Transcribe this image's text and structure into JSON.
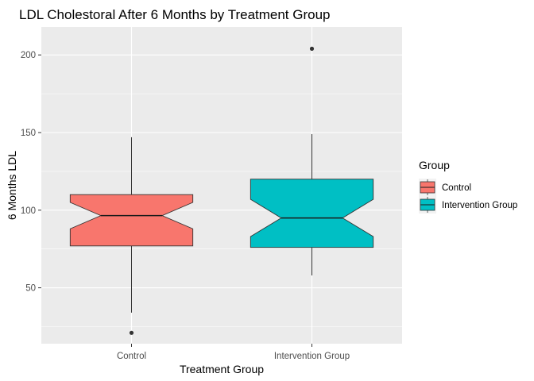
{
  "chart_data": {
    "type": "boxplot",
    "title": "LDL Cholestoral After 6 Months by Treatment Group",
    "xlabel": "Treatment Group",
    "ylabel": "6 Months LDL",
    "categories": [
      "Control",
      "Intervention Group"
    ],
    "y_ticks": [
      50,
      100,
      150,
      200
    ],
    "y_tick_labels": [
      "50",
      "100",
      "150",
      "200"
    ],
    "ylim": [
      14,
      218
    ],
    "grid": true,
    "notched": true,
    "legend": {
      "title": "Group",
      "position": "right",
      "entries": [
        "Control",
        "Intervention Group"
      ]
    },
    "series": [
      {
        "category": "Control",
        "color": "#F8766D",
        "q1": 77,
        "median": 96.5,
        "q3": 110,
        "notch_low": 88,
        "notch_high": 105,
        "whisker_low": 34,
        "whisker_high": 147,
        "outliers": [
          21
        ]
      },
      {
        "category": "Intervention Group",
        "color": "#00BFC4",
        "q1": 76,
        "median": 95,
        "q3": 120,
        "notch_low": 83,
        "notch_high": 107,
        "whisker_low": 58,
        "whisker_high": 149,
        "outliers": [
          204
        ]
      }
    ],
    "panel_background": "#EBEBEB",
    "grid_color": "#FFFFFF"
  }
}
